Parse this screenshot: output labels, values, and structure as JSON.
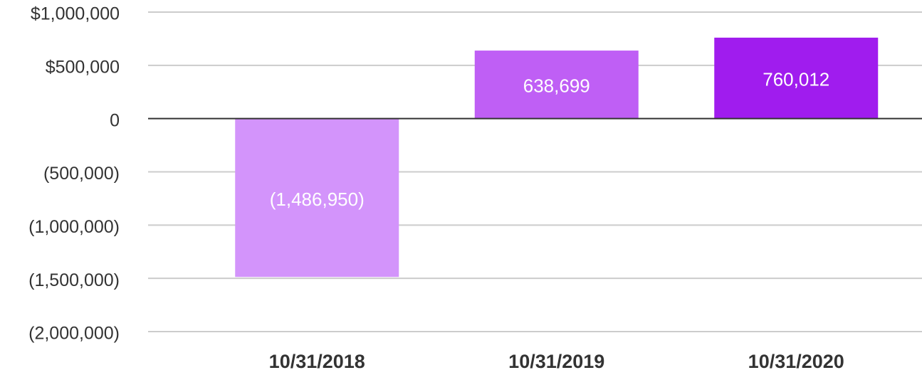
{
  "chart_data": {
    "type": "bar",
    "categories": [
      "10/31/2018",
      "10/31/2019",
      "10/31/2020"
    ],
    "values": [
      -1486950,
      638699,
      760012
    ],
    "value_labels": [
      "(1,486,950)",
      "638,699",
      "760,012"
    ],
    "colors": [
      "#d394fb",
      "#bf5ff5",
      "#a01cee"
    ],
    "ylim": [
      -2000000,
      1000000
    ],
    "yticks": [
      {
        "value": 1000000,
        "label": "$1,000,000"
      },
      {
        "value": 500000,
        "label": "$500,000"
      },
      0,
      {
        "value": -500000,
        "label": "(500,000)"
      },
      {
        "value": -1000000,
        "label": "(1,000,000)"
      },
      {
        "value": -1500000,
        "label": "(1,500,000)"
      },
      {
        "value": -2000000,
        "label": "(2,000,000)"
      }
    ],
    "grid": true
  }
}
